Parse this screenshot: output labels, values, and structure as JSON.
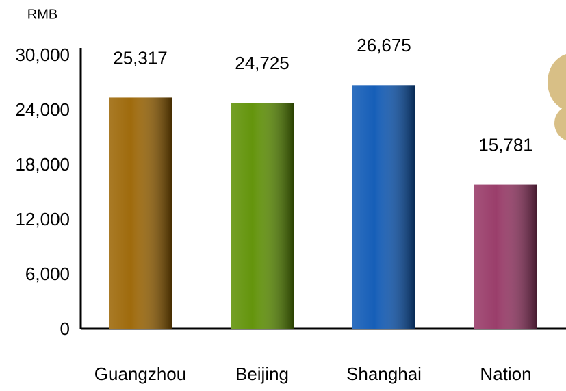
{
  "chart_data": {
    "type": "bar",
    "y_label": "RMB",
    "categories": [
      "Guangzhou",
      "Beijing",
      "Shanghai",
      "Nation"
    ],
    "values": [
      25317,
      24725,
      26675,
      15781
    ],
    "value_labels": [
      "25,317",
      "24,725",
      "26,675",
      "15,781"
    ],
    "colors": [
      "#9a6300",
      "#5c8f00",
      "#0a56b4",
      "#953463"
    ],
    "ylim": [
      0,
      30000
    ],
    "yticks": [
      0,
      {
        "value": 6000,
        "label": "6,000"
      },
      {
        "value": 12000,
        "label": "12,000"
      },
      {
        "value": 18000,
        "label": "18,000"
      },
      {
        "value": 24000,
        "label": "24,000"
      },
      {
        "value": 30000,
        "label": "30,000"
      }
    ],
    "grid": false
  }
}
